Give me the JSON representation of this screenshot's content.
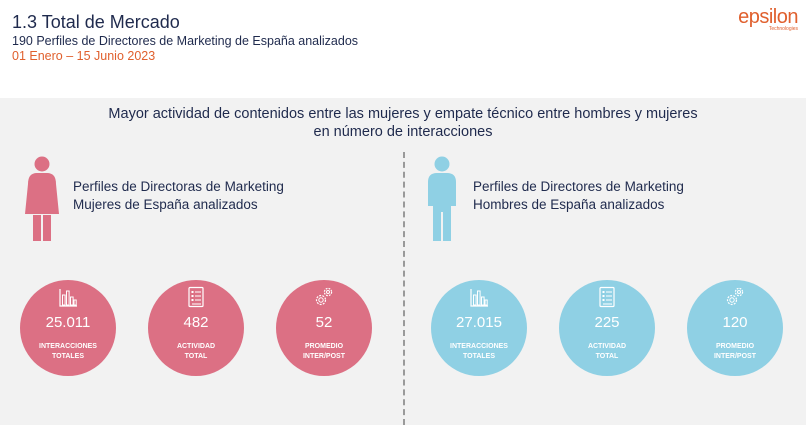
{
  "header": {
    "title": "1.3 Total de Mercado",
    "subtitle": "190 Perfiles de Directores de Marketing de España analizados",
    "date_range": "01 Enero – 15 Junio 2023"
  },
  "logo": {
    "name": "epsilon",
    "tagline": "Technologies"
  },
  "headline": "Mayor actividad de contenidos entre las mujeres y empate técnico entre hombres y mujeres en número de interacciones",
  "women": {
    "label_line1": "Perfiles de Directoras de Marketing",
    "label_line2": "Mujeres de España analizados",
    "icon": "female-person-icon",
    "color": "#dc7084",
    "stats": [
      {
        "icon": "bar-chart-icon",
        "value": "25.011",
        "label_line1": "INTERACCIONES",
        "label_line2": "TOTALES"
      },
      {
        "icon": "checklist-icon",
        "value": "482",
        "label_line1": "ACTIVIDAD",
        "label_line2": "TOTAL"
      },
      {
        "icon": "gears-icon",
        "value": "52",
        "label_line1": "PROMEDIO",
        "label_line2": "INTER/POST"
      }
    ]
  },
  "men": {
    "label_line1": "Perfiles de Directores de Marketing",
    "label_line2": "Hombres de España analizados",
    "icon": "male-person-icon",
    "color": "#8fd0e4",
    "stats": [
      {
        "icon": "bar-chart-icon",
        "value": "27.015",
        "label_line1": "INTERACCIONES",
        "label_line2": "TOTALES"
      },
      {
        "icon": "checklist-icon",
        "value": "225",
        "label_line1": "ACTIVIDAD",
        "label_line2": "TOTAL"
      },
      {
        "icon": "gears-icon",
        "value": "120",
        "label_line1": "PROMEDIO",
        "label_line2": "INTER/POST"
      }
    ]
  }
}
